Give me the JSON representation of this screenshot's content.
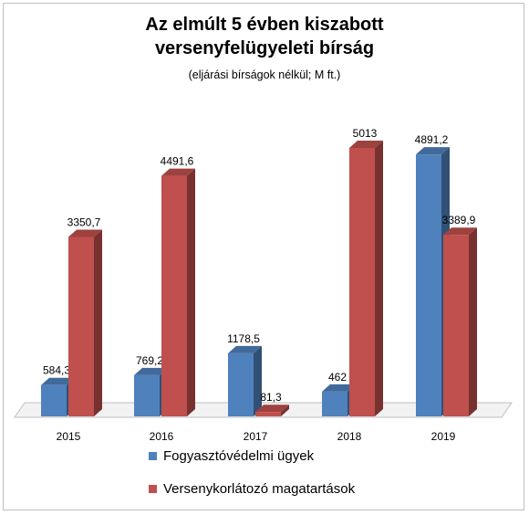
{
  "chart_data": {
    "type": "bar",
    "title_line1": "Az elmúlt 5 évben kiszabott",
    "title_line2": "versenyfelügyeleti bírság",
    "subtitle": "(eljárási bírságok nélkül; M ft.)",
    "categories": [
      "2015",
      "2016",
      "2017",
      "2018",
      "2019"
    ],
    "series": [
      {
        "name": "Fogyasztóvédelmi ügyek",
        "values": [
          584.3,
          769.2,
          1178.5,
          462,
          4891.2
        ],
        "labels": [
          "584,3",
          "769,2",
          "1178,5",
          "462",
          "4891,2"
        ],
        "color": "#4f81bd"
      },
      {
        "name": "Versenykorlátozó magatartások",
        "values": [
          3350.7,
          4491.6,
          81.3,
          5013,
          3389.9
        ],
        "labels": [
          "3350,7",
          "4491,6",
          "81,3",
          "5013",
          "3389,9"
        ],
        "color": "#c0504d"
      }
    ],
    "ylim": [
      0,
      5013
    ],
    "grid": false,
    "legend": "bottom",
    "style": "3d-column"
  }
}
